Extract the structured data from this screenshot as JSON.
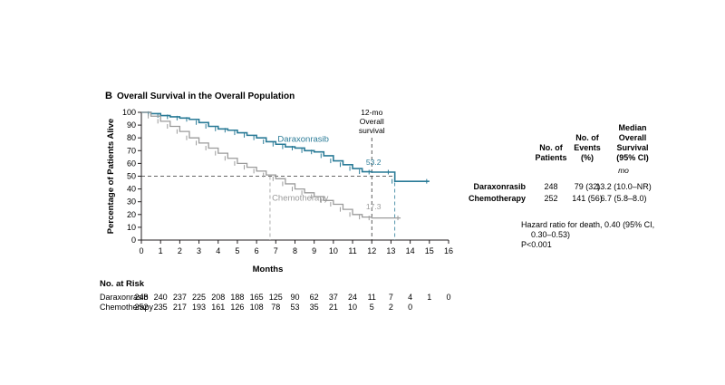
{
  "panel": {
    "letter": "B",
    "title": "Overall Survival in the Overall Population"
  },
  "chart_data": {
    "type": "line",
    "xlabel": "Months",
    "ylabel": "Percentage of Patients Alive",
    "xlim": [
      0,
      16
    ],
    "ylim": [
      0,
      100
    ],
    "x_ticks": [
      0,
      1,
      2,
      3,
      4,
      5,
      6,
      7,
      8,
      9,
      10,
      11,
      12,
      13,
      14,
      15,
      16
    ],
    "y_ticks": [
      0,
      10,
      20,
      30,
      40,
      50,
      60,
      70,
      80,
      90,
      100
    ],
    "reference_line_y": 50,
    "reference_line_x": 12,
    "reference_label": [
      "12-mo",
      "Overall",
      "survival"
    ],
    "series": [
      {
        "name": "Daraxonrasib",
        "color": "#2a7b97",
        "label_value": "53.2",
        "median_x": 13.2,
        "points": [
          [
            0,
            100
          ],
          [
            0.5,
            99
          ],
          [
            1,
            97.5
          ],
          [
            1.5,
            96.5
          ],
          [
            2,
            95.5
          ],
          [
            2.5,
            94.5
          ],
          [
            3,
            92
          ],
          [
            3.5,
            89
          ],
          [
            4,
            87
          ],
          [
            4.5,
            86
          ],
          [
            5,
            84
          ],
          [
            5.5,
            82
          ],
          [
            6,
            80
          ],
          [
            6.5,
            77
          ],
          [
            7,
            75
          ],
          [
            7.5,
            73
          ],
          [
            8,
            72
          ],
          [
            8.5,
            70
          ],
          [
            9,
            69
          ],
          [
            9.5,
            66
          ],
          [
            10,
            62
          ],
          [
            10.5,
            59
          ],
          [
            11,
            56
          ],
          [
            11.5,
            53.5
          ],
          [
            12,
            53.2
          ],
          [
            13,
            53.2
          ],
          [
            13.2,
            46
          ],
          [
            15,
            46
          ]
        ]
      },
      {
        "name": "Chemotherapy",
        "color": "#9b9b9b",
        "label_value": "17.3",
        "median_x": 6.7,
        "points": [
          [
            0,
            100
          ],
          [
            0.5,
            97
          ],
          [
            1,
            93
          ],
          [
            1.5,
            89
          ],
          [
            2,
            85
          ],
          [
            2.5,
            80
          ],
          [
            3,
            76
          ],
          [
            3.5,
            72
          ],
          [
            4,
            68
          ],
          [
            4.5,
            64
          ],
          [
            5,
            60
          ],
          [
            5.5,
            57
          ],
          [
            6,
            54
          ],
          [
            6.5,
            51
          ],
          [
            7,
            48
          ],
          [
            7.5,
            44
          ],
          [
            8,
            40
          ],
          [
            8.5,
            37
          ],
          [
            9,
            34
          ],
          [
            9.5,
            31
          ],
          [
            10,
            28
          ],
          [
            10.5,
            24
          ],
          [
            11,
            20
          ],
          [
            11.5,
            18
          ],
          [
            12,
            17.3
          ],
          [
            13.5,
            17.3
          ]
        ]
      }
    ]
  },
  "summary_table": {
    "headers": [
      "No. of\nPatients",
      "No. of\nEvents\n(%)",
      "Median\nOverall\nSurvival\n(95% CI)"
    ],
    "unit": "mo",
    "rows": [
      {
        "name": "Daraxonrasib",
        "patients": "248",
        "events": "79 (32)",
        "median": "13.2 (10.0–NR)"
      },
      {
        "name": "Chemotherapy",
        "patients": "252",
        "events": "141 (56)",
        "median": "6.7 (5.8–8.0)"
      }
    ],
    "hazard_lines": [
      "Hazard ratio for death, 0.40 (95% CI,",
      "0.30–0.53)",
      "P<0.001"
    ]
  },
  "at_risk": {
    "title": "No. at Risk",
    "rows": [
      {
        "name": "Daraxonrasib",
        "values": [
          "248",
          "240",
          "237",
          "225",
          "208",
          "188",
          "165",
          "125",
          "90",
          "62",
          "37",
          "24",
          "11",
          "7",
          "4",
          "1",
          "0"
        ]
      },
      {
        "name": "Chemotherapy",
        "values": [
          "252",
          "235",
          "217",
          "193",
          "161",
          "126",
          "108",
          "78",
          "53",
          "35",
          "21",
          "10",
          "5",
          "2",
          "0"
        ]
      }
    ]
  }
}
